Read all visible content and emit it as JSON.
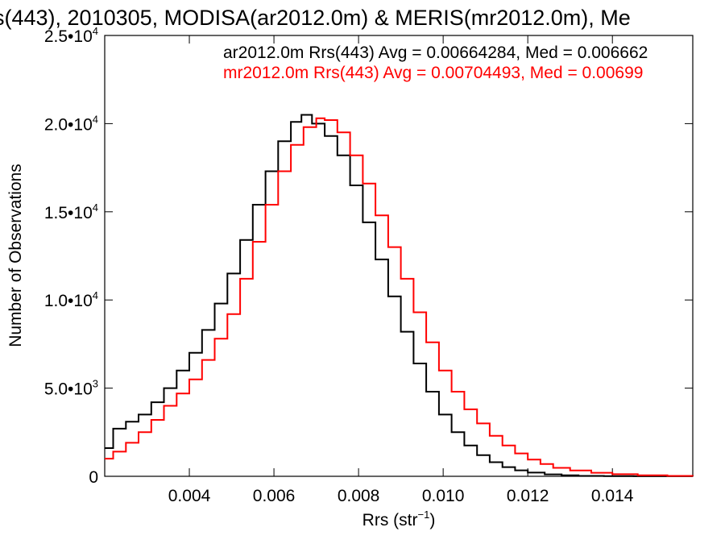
{
  "chart_data": {
    "type": "line",
    "title": "s(443), 2010305, MODISA(ar2012.0m) & MERIS(mr2012.0m), Me",
    "xlabel": "Rrs (str",
    "xlabel_sup": "−1",
    "xlabel_close": ")",
    "ylabel": "Number of Observations",
    "xlim": [
      0.002,
      0.0159
    ],
    "ylim": [
      0,
      25000
    ],
    "grid": false,
    "x_ticks": [
      {
        "value": 0.004,
        "label": "0.004"
      },
      {
        "value": 0.006,
        "label": "0.006"
      },
      {
        "value": 0.008,
        "label": "0.008"
      },
      {
        "value": 0.01,
        "label": "0.010"
      },
      {
        "value": 0.012,
        "label": "0.012"
      },
      {
        "value": 0.014,
        "label": "0.014"
      }
    ],
    "y_ticks": [
      {
        "value": 0,
        "mant": "0",
        "exp": ""
      },
      {
        "value": 5000,
        "mant": "5.0•10",
        "exp": "3"
      },
      {
        "value": 10000,
        "mant": "1.0•10",
        "exp": "4"
      },
      {
        "value": 15000,
        "mant": "1.5•10",
        "exp": "4"
      },
      {
        "value": 20000,
        "mant": "2.0•10",
        "exp": "4"
      },
      {
        "value": 25000,
        "mant": "2.5•10",
        "exp": "4"
      }
    ],
    "series": [
      {
        "name": "ar2012.0m Rrs(443)",
        "label": "ar2012.0m Rrs(443) Avg = 0.00664284, Med = 0.006662",
        "color": "#000000",
        "points": [
          [
            0.002,
            1600
          ],
          [
            0.0022,
            2700
          ],
          [
            0.0025,
            3100
          ],
          [
            0.0028,
            3500
          ],
          [
            0.0031,
            4200
          ],
          [
            0.0034,
            5000
          ],
          [
            0.0037,
            6000
          ],
          [
            0.004,
            7000
          ],
          [
            0.0043,
            8300
          ],
          [
            0.0046,
            9800
          ],
          [
            0.0049,
            11500
          ],
          [
            0.0052,
            13400
          ],
          [
            0.0055,
            15400
          ],
          [
            0.0058,
            17300
          ],
          [
            0.0061,
            19000
          ],
          [
            0.0064,
            20100
          ],
          [
            0.00665,
            20500
          ],
          [
            0.0069,
            20000
          ],
          [
            0.0072,
            19300
          ],
          [
            0.0075,
            18200
          ],
          [
            0.0078,
            16500
          ],
          [
            0.0081,
            14400
          ],
          [
            0.0084,
            12300
          ],
          [
            0.0087,
            10200
          ],
          [
            0.009,
            8200
          ],
          [
            0.0093,
            6400
          ],
          [
            0.0096,
            4800
          ],
          [
            0.0099,
            3500
          ],
          [
            0.0102,
            2500
          ],
          [
            0.0105,
            1750
          ],
          [
            0.0108,
            1200
          ],
          [
            0.0111,
            800
          ],
          [
            0.0114,
            520
          ],
          [
            0.0117,
            340
          ],
          [
            0.012,
            210
          ],
          [
            0.0124,
            110
          ],
          [
            0.0128,
            55
          ],
          [
            0.0132,
            25
          ],
          [
            0.0138,
            10
          ],
          [
            0.0145,
            4
          ],
          [
            0.0159,
            0
          ]
        ]
      },
      {
        "name": "mr2012.0m Rrs(443)",
        "label": "mr2012.0m Rrs(443) Avg = 0.00704493, Med = 0.00699",
        "color": "#ff0000",
        "points": [
          [
            0.002,
            1000
          ],
          [
            0.0022,
            1400
          ],
          [
            0.0025,
            1900
          ],
          [
            0.0028,
            2500
          ],
          [
            0.0031,
            3200
          ],
          [
            0.0034,
            4000
          ],
          [
            0.0037,
            4700
          ],
          [
            0.004,
            5500
          ],
          [
            0.0043,
            6600
          ],
          [
            0.0046,
            7800
          ],
          [
            0.0049,
            9200
          ],
          [
            0.0052,
            11200
          ],
          [
            0.0055,
            13300
          ],
          [
            0.0058,
            15400
          ],
          [
            0.0061,
            17300
          ],
          [
            0.0064,
            18800
          ],
          [
            0.0067,
            19800
          ],
          [
            0.007,
            20300
          ],
          [
            0.0072,
            20200
          ],
          [
            0.0075,
            19500
          ],
          [
            0.0078,
            18200
          ],
          [
            0.0081,
            16600
          ],
          [
            0.0084,
            14800
          ],
          [
            0.0087,
            13000
          ],
          [
            0.009,
            11200
          ],
          [
            0.0093,
            9300
          ],
          [
            0.0096,
            7600
          ],
          [
            0.0099,
            6000
          ],
          [
            0.0102,
            4800
          ],
          [
            0.0105,
            3800
          ],
          [
            0.0108,
            3000
          ],
          [
            0.0111,
            2300
          ],
          [
            0.0114,
            1750
          ],
          [
            0.0117,
            1300
          ],
          [
            0.012,
            950
          ],
          [
            0.0123,
            700
          ],
          [
            0.0126,
            480
          ],
          [
            0.013,
            330
          ],
          [
            0.0135,
            200
          ],
          [
            0.014,
            120
          ],
          [
            0.0146,
            60
          ],
          [
            0.0153,
            25
          ],
          [
            0.0159,
            8
          ]
        ]
      }
    ]
  }
}
